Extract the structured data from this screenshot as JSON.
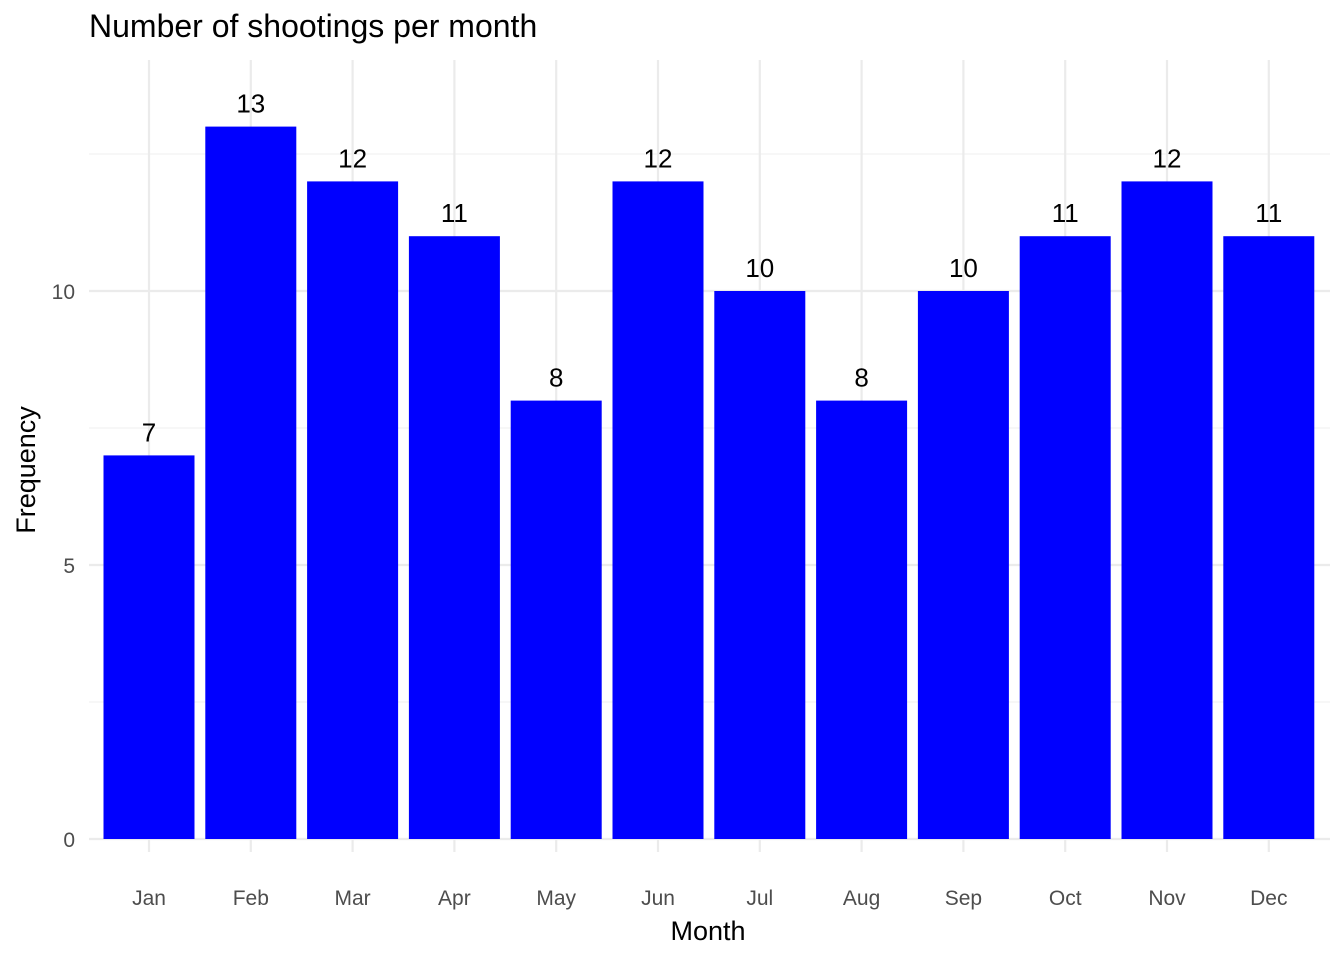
{
  "chart_data": {
    "type": "bar",
    "title": "Number of shootings per month",
    "xlabel": "Month",
    "ylabel": "Frequency",
    "categories": [
      "Jan",
      "Feb",
      "Mar",
      "Apr",
      "May",
      "Jun",
      "Jul",
      "Aug",
      "Sep",
      "Oct",
      "Nov",
      "Dec"
    ],
    "values": [
      7,
      13,
      12,
      11,
      8,
      12,
      10,
      8,
      10,
      11,
      12,
      11
    ],
    "data_labels": [
      "7",
      "13",
      "12",
      "11",
      "8",
      "12",
      "10",
      "8",
      "10",
      "11",
      "12",
      "11"
    ],
    "ylim": [
      0,
      13.65
    ],
    "y_ticks": [
      0,
      5,
      10
    ],
    "y_tick_labels": [
      "0",
      "5",
      "10"
    ],
    "bar_color": "#0000ff",
    "grid": true,
    "legend": "none"
  }
}
